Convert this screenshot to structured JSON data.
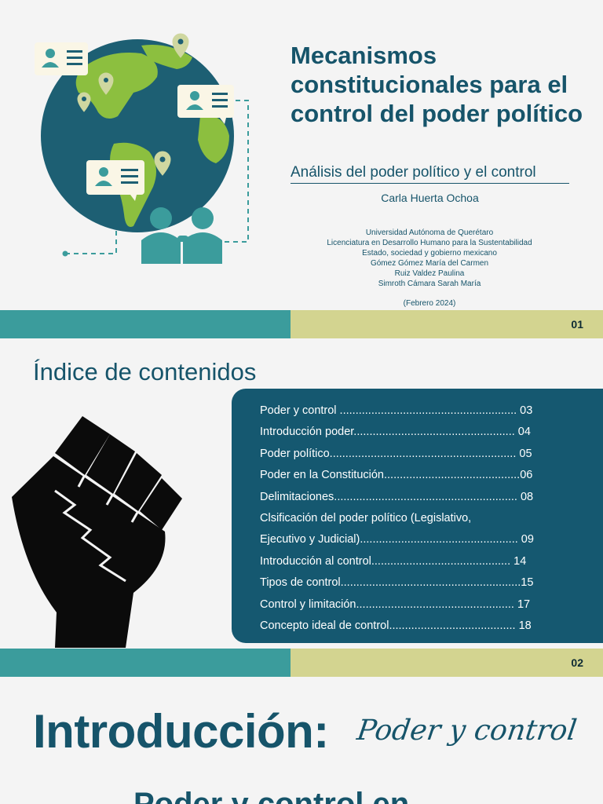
{
  "slide1": {
    "title": "Mecanismos constitucionales para el control del poder político",
    "subtitle": "Análisis del poder político y el control",
    "author": "Carla Huerta Ochoa",
    "info": [
      "Universidad Autónoma de Querétaro",
      "Licenciatura en Desarrollo Humano para la Sustentabilidad",
      "Estado, sociedad y gobierno mexicano",
      "Gómez Gómez María del Carmen",
      "Ruiz Valdez Paulina",
      "Simroth Cámara Sarah María"
    ],
    "date": "(Febrero 2024)",
    "page": "01",
    "illustration_icon": "globe-people-icon"
  },
  "slide2": {
    "title": "Índice de contenidos",
    "page": "02",
    "fist_icon": "raised-fist-icon",
    "toc": [
      "Poder y control ........................................................ 03",
      "Introducción poder................................................... 04",
      "Poder político........................................................... 05",
      "Poder en la Constitución...........................................06",
      "Delimitaciones.......................................................... 08",
      "Clsificación del poder político (Legislativo,",
      "Ejecutivo y Judicial).................................................. 09",
      "Introducción al control............................................ 14",
      "Tipos de control.........................................................15",
      "Control y limitación.................................................. 17",
      "Concepto ideal de control........................................ 18"
    ]
  },
  "slide3": {
    "title": "Introducción:",
    "script": "Poder y control",
    "next_heading": "Poder y control en"
  },
  "colors": {
    "primary": "#16546a",
    "teal_band": "#3b9c9c",
    "olive_band": "#d3d490",
    "toc_bg": "#155870",
    "globe_ocean": "#1d5f73",
    "globe_land": "#8cbf3f",
    "people": "#3b9c9c"
  }
}
